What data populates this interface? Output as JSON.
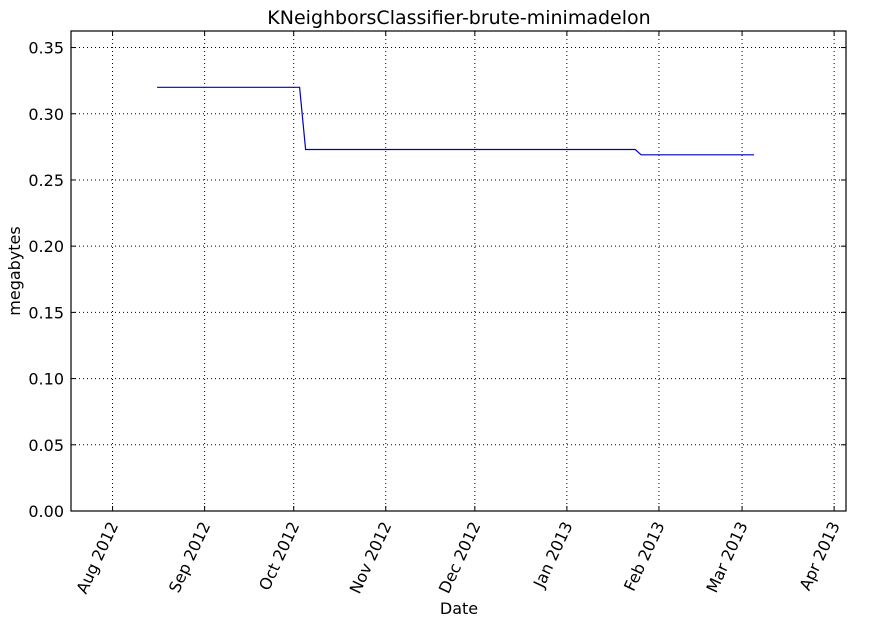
{
  "chart_data": {
    "type": "line",
    "title": "KNeighborsClassifier-brute-minimadelon",
    "xlabel": "Date",
    "ylabel": "megabytes",
    "x_type": "date",
    "xlim": [
      "2012-07-18",
      "2013-04-05"
    ],
    "ylim": [
      0.0,
      0.3625
    ],
    "x_ticks": [
      {
        "date": "2012-08-01",
        "label": "Aug 2012"
      },
      {
        "date": "2012-09-01",
        "label": "Sep 2012"
      },
      {
        "date": "2012-10-01",
        "label": "Oct 2012"
      },
      {
        "date": "2012-11-01",
        "label": "Nov 2012"
      },
      {
        "date": "2012-12-01",
        "label": "Dec 2012"
      },
      {
        "date": "2013-01-01",
        "label": "Jan 2013"
      },
      {
        "date": "2013-02-01",
        "label": "Feb 2013"
      },
      {
        "date": "2013-03-01",
        "label": "Mar 2013"
      },
      {
        "date": "2013-04-01",
        "label": "Apr 2013"
      }
    ],
    "y_ticks": [
      {
        "value": 0.0,
        "label": "0.00"
      },
      {
        "value": 0.05,
        "label": "0.05"
      },
      {
        "value": 0.1,
        "label": "0.10"
      },
      {
        "value": 0.15,
        "label": "0.15"
      },
      {
        "value": 0.2,
        "label": "0.20"
      },
      {
        "value": 0.25,
        "label": "0.25"
      },
      {
        "value": 0.3,
        "label": "0.30"
      },
      {
        "value": 0.35,
        "label": "0.35"
      }
    ],
    "grid": true,
    "series": [
      {
        "color": "#0000bf",
        "points": [
          {
            "x": "2012-08-16",
            "y": 0.32
          },
          {
            "x": "2012-10-03",
            "y": 0.32
          },
          {
            "x": "2012-10-05",
            "y": 0.273
          },
          {
            "x": "2013-01-24",
            "y": 0.273
          },
          {
            "x": "2013-01-26",
            "y": 0.269
          },
          {
            "x": "2013-03-05",
            "y": 0.269
          }
        ]
      }
    ]
  }
}
